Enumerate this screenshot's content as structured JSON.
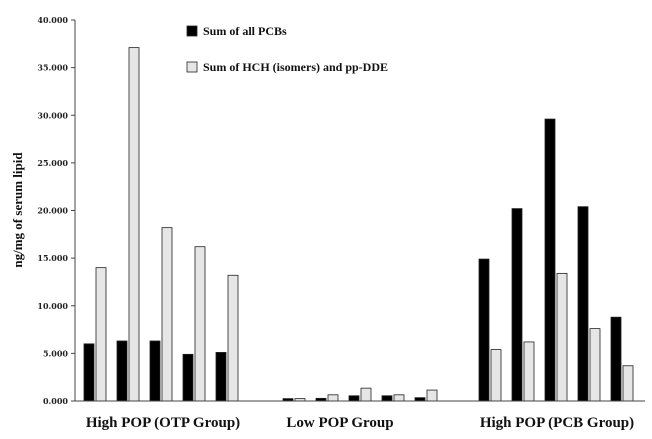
{
  "chart_data": {
    "type": "bar",
    "title": "",
    "xlabel": "",
    "ylabel": "ng/mg of serum lipid",
    "ylim": [
      0,
      40000
    ],
    "yticks": [
      "0.000",
      "5.000",
      "10.000",
      "15.000",
      "20.000",
      "25.000",
      "30.000",
      "35.000",
      "40.000"
    ],
    "ytick_values": [
      0,
      5000,
      10000,
      15000,
      20000,
      25000,
      30000,
      35000,
      40000
    ],
    "groups": [
      "High POP (OTP Group)",
      "Low POP Group",
      "High POP (PCB Group)"
    ],
    "legend_position": "top-center",
    "series": [
      {
        "name": "Sum of all PCBs",
        "color": "#000000",
        "values": [
          [
            6000,
            6300,
            6300,
            4900,
            5100
          ],
          [
            250,
            280,
            550,
            550,
            350
          ],
          [
            14900,
            20200,
            29600,
            20400,
            8800
          ]
        ]
      },
      {
        "name": "Sum of HCH (isomers) and pp-DDE",
        "color": "#e6e6e6",
        "values": [
          [
            14000,
            37100,
            18200,
            16200,
            13200
          ],
          [
            250,
            650,
            1350,
            650,
            1150
          ],
          [
            5400,
            6200,
            13400,
            7600,
            3700
          ]
        ]
      }
    ]
  }
}
